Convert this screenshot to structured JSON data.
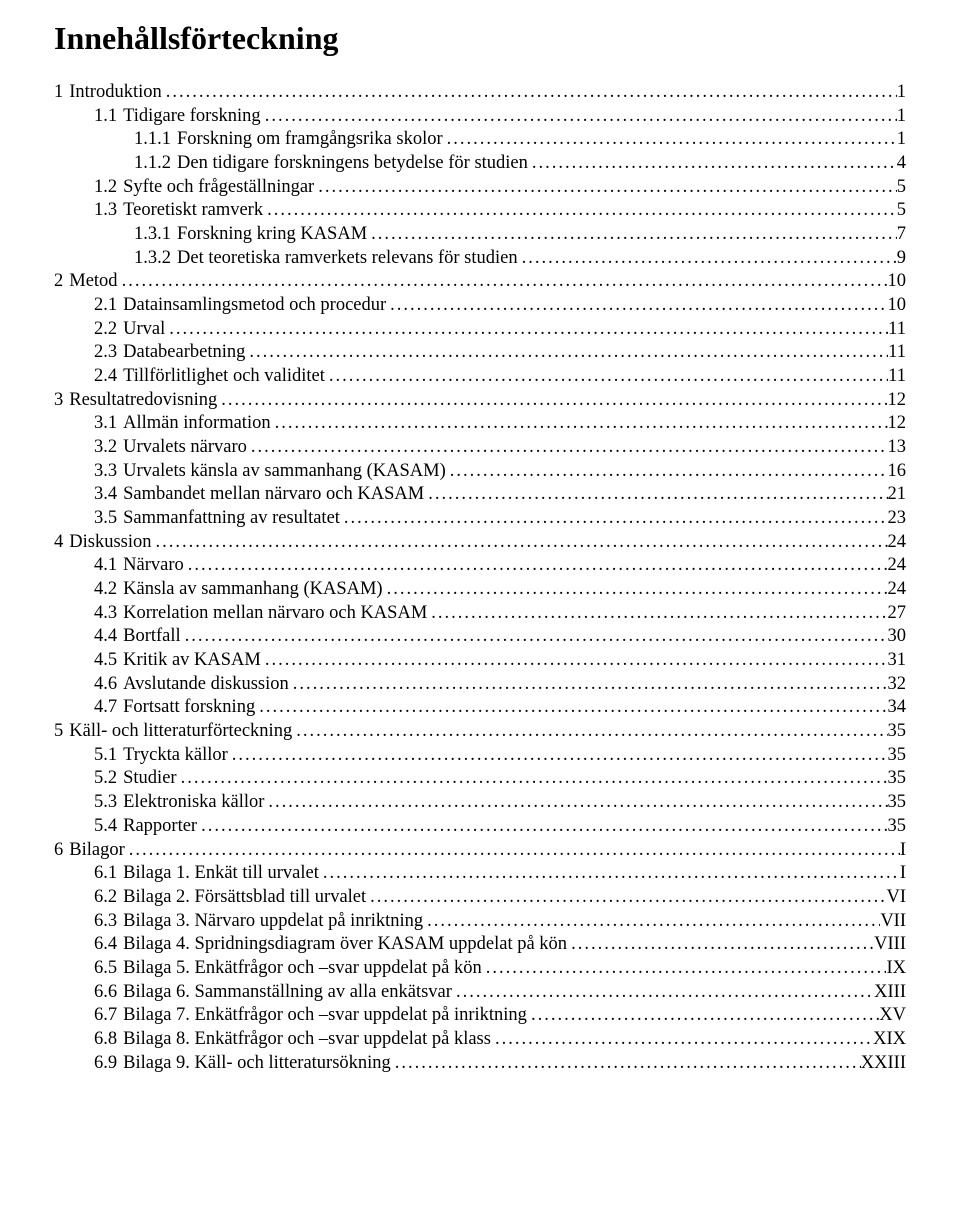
{
  "title": "Innehållsförteckning",
  "toc": [
    {
      "level": 0,
      "num": "1",
      "text": "Introduktion",
      "page": "1"
    },
    {
      "level": 1,
      "num": "1.1",
      "text": "Tidigare forskning",
      "page": "1"
    },
    {
      "level": 2,
      "num": "1.1.1",
      "text": "Forskning om framgångsrika skolor",
      "page": "1"
    },
    {
      "level": 2,
      "num": "1.1.2",
      "text": "Den tidigare forskningens betydelse för studien",
      "page": "4"
    },
    {
      "level": 1,
      "num": "1.2",
      "text": "Syfte och frågeställningar",
      "page": "5"
    },
    {
      "level": 1,
      "num": "1.3",
      "text": "Teoretiskt ramverk",
      "page": "5"
    },
    {
      "level": 2,
      "num": "1.3.1",
      "text": "Forskning kring KASAM",
      "page": "7"
    },
    {
      "level": 2,
      "num": "1.3.2",
      "text": "Det teoretiska ramverkets relevans för studien",
      "page": "9"
    },
    {
      "level": 0,
      "num": "2",
      "text": "Metod",
      "page": "10"
    },
    {
      "level": 1,
      "num": "2.1",
      "text": "Datainsamlingsmetod och procedur",
      "page": "10"
    },
    {
      "level": 1,
      "num": "2.2",
      "text": "Urval",
      "page": "11"
    },
    {
      "level": 1,
      "num": "2.3",
      "text": "Databearbetning",
      "page": "11"
    },
    {
      "level": 1,
      "num": "2.4",
      "text": "Tillförlitlighet och validitet",
      "page": "11"
    },
    {
      "level": 0,
      "num": "3",
      "text": "Resultatredovisning",
      "page": "12"
    },
    {
      "level": 1,
      "num": "3.1",
      "text": "Allmän information",
      "page": "12"
    },
    {
      "level": 1,
      "num": "3.2",
      "text": "Urvalets närvaro",
      "page": "13"
    },
    {
      "level": 1,
      "num": "3.3",
      "text": "Urvalets känsla av sammanhang (KASAM)",
      "page": "16"
    },
    {
      "level": 1,
      "num": "3.4",
      "text": "Sambandet mellan närvaro och KASAM",
      "page": "21"
    },
    {
      "level": 1,
      "num": "3.5",
      "text": "Sammanfattning av resultatet",
      "page": "23"
    },
    {
      "level": 0,
      "num": "4",
      "text": "Diskussion",
      "page": "24"
    },
    {
      "level": 1,
      "num": "4.1",
      "text": "Närvaro",
      "page": "24"
    },
    {
      "level": 1,
      "num": "4.2",
      "text": "Känsla av sammanhang (KASAM)",
      "page": "24"
    },
    {
      "level": 1,
      "num": "4.3",
      "text": "Korrelation mellan närvaro och KASAM",
      "page": "27"
    },
    {
      "level": 1,
      "num": "4.4",
      "text": "Bortfall",
      "page": "30"
    },
    {
      "level": 1,
      "num": "4.5",
      "text": "Kritik av KASAM",
      "page": "31"
    },
    {
      "level": 1,
      "num": "4.6",
      "text": "Avslutande diskussion",
      "page": "32"
    },
    {
      "level": 1,
      "num": "4.7",
      "text": "Fortsatt forskning",
      "page": "34"
    },
    {
      "level": 0,
      "num": "5",
      "text": "Käll- och litteraturförteckning",
      "page": "35"
    },
    {
      "level": 1,
      "num": "5.1",
      "text": "Tryckta källor",
      "page": "35"
    },
    {
      "level": 1,
      "num": "5.2",
      "text": "Studier",
      "page": "35"
    },
    {
      "level": 1,
      "num": "5.3",
      "text": "Elektroniska källor",
      "page": "35"
    },
    {
      "level": 1,
      "num": "5.4",
      "text": "Rapporter",
      "page": "35"
    },
    {
      "level": 0,
      "num": "6",
      "text": "Bilagor",
      "page": "I"
    },
    {
      "level": 1,
      "num": "6.1",
      "text": "Bilaga 1. Enkät till urvalet",
      "page": "I"
    },
    {
      "level": 1,
      "num": "6.2",
      "text": "Bilaga 2. Försättsblad till urvalet",
      "page": "VI"
    },
    {
      "level": 1,
      "num": "6.3",
      "text": "Bilaga 3. Närvaro uppdelat på inriktning",
      "page": "VII"
    },
    {
      "level": 1,
      "num": "6.4",
      "text": "Bilaga 4. Spridningsdiagram över KASAM uppdelat på kön",
      "page": "VIII"
    },
    {
      "level": 1,
      "num": "6.5",
      "text": "Bilaga 5. Enkätfrågor och –svar uppdelat på kön",
      "page": "IX"
    },
    {
      "level": 1,
      "num": "6.6",
      "text": "Bilaga 6. Sammanställning av alla enkätsvar",
      "page": "XIII"
    },
    {
      "level": 1,
      "num": "6.7",
      "text": "Bilaga 7. Enkätfrågor och –svar uppdelat på inriktning",
      "page": "XV"
    },
    {
      "level": 1,
      "num": "6.8",
      "text": "Bilaga 8. Enkätfrågor och –svar uppdelat på klass",
      "page": "XIX"
    },
    {
      "level": 1,
      "num": "6.9",
      "text": "Bilaga 9. Käll- och litteratursökning",
      "page": "XXIII"
    }
  ]
}
